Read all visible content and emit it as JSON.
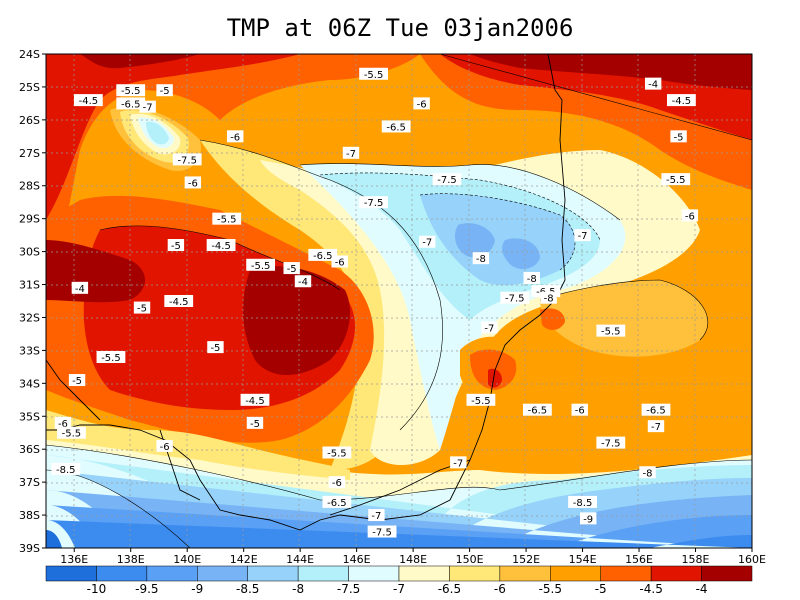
{
  "title": "TMP at 06Z Tue 03jan2006",
  "map": {
    "lat_labels": [
      "24S",
      "25S",
      "26S",
      "27S",
      "28S",
      "29S",
      "30S",
      "31S",
      "32S",
      "33S",
      "34S",
      "35S",
      "36S",
      "37S",
      "38S",
      "39S"
    ],
    "lon_labels": [
      "136E",
      "138E",
      "140E",
      "142E",
      "144E",
      "146E",
      "148E",
      "150E",
      "152E",
      "154E",
      "156E",
      "158E",
      "160E"
    ],
    "lon_range": [
      135,
      160
    ],
    "lat_range": [
      -39,
      -24
    ],
    "grid": "dotted"
  },
  "contour_labels": [
    {
      "text": "-5.5",
      "lon": 146.6,
      "lat": -24.6
    },
    {
      "text": "-4",
      "lon": 156.5,
      "lat": -24.9
    },
    {
      "text": "-5",
      "lon": 139.2,
      "lat": -25.1
    },
    {
      "text": "-5.5",
      "lon": 138.0,
      "lat": -25.1
    },
    {
      "text": "-4.5",
      "lon": 136.5,
      "lat": -25.4
    },
    {
      "text": "-6.5",
      "lon": 138.0,
      "lat": -25.5
    },
    {
      "text": "-7",
      "lon": 138.6,
      "lat": -25.6
    },
    {
      "text": "-4.5",
      "lon": 157.5,
      "lat": -25.4
    },
    {
      "text": "-6",
      "lon": 148.3,
      "lat": -25.5
    },
    {
      "text": "-6.5",
      "lon": 147.4,
      "lat": -26.2
    },
    {
      "text": "-6",
      "lon": 141.7,
      "lat": -26.5
    },
    {
      "text": "-5",
      "lon": 157.4,
      "lat": -26.5
    },
    {
      "text": "-7.5",
      "lon": 140.0,
      "lat": -27.2
    },
    {
      "text": "-7",
      "lon": 145.8,
      "lat": -27.0
    },
    {
      "text": "-6",
      "lon": 140.2,
      "lat": -27.9
    },
    {
      "text": "-7.5",
      "lon": 149.2,
      "lat": -27.8
    },
    {
      "text": "-5.5",
      "lon": 157.3,
      "lat": -27.8
    },
    {
      "text": "-7.5",
      "lon": 146.6,
      "lat": -28.5
    },
    {
      "text": "-6",
      "lon": 157.8,
      "lat": -28.9
    },
    {
      "text": "-5.5",
      "lon": 141.4,
      "lat": -29.0
    },
    {
      "text": "-7",
      "lon": 148.5,
      "lat": -29.7
    },
    {
      "text": "-7",
      "lon": 154.0,
      "lat": -29.5
    },
    {
      "text": "-5",
      "lon": 139.6,
      "lat": -29.8
    },
    {
      "text": "-4.5",
      "lon": 141.2,
      "lat": -29.8
    },
    {
      "text": "-6.5",
      "lon": 144.8,
      "lat": -30.1
    },
    {
      "text": "-6",
      "lon": 145.4,
      "lat": -30.3
    },
    {
      "text": "-5.5",
      "lon": 142.6,
      "lat": -30.4
    },
    {
      "text": "-5",
      "lon": 143.7,
      "lat": -30.5
    },
    {
      "text": "-8",
      "lon": 150.4,
      "lat": -30.2
    },
    {
      "text": "-8",
      "lon": 152.2,
      "lat": -30.8
    },
    {
      "text": "-4",
      "lon": 144.1,
      "lat": -30.9
    },
    {
      "text": "-4",
      "lon": 136.2,
      "lat": -31.1
    },
    {
      "text": "-6.5",
      "lon": 152.7,
      "lat": -31.2
    },
    {
      "text": "-8",
      "lon": 152.8,
      "lat": -31.4
    },
    {
      "text": "-7.5",
      "lon": 151.6,
      "lat": -31.4
    },
    {
      "text": "-4.5",
      "lon": 139.7,
      "lat": -31.5
    },
    {
      "text": "-5",
      "lon": 138.4,
      "lat": -31.7
    },
    {
      "text": "-7",
      "lon": 150.7,
      "lat": -32.3
    },
    {
      "text": "-5.5",
      "lon": 155.0,
      "lat": -32.4
    },
    {
      "text": "-5",
      "lon": 141.0,
      "lat": -32.9
    },
    {
      "text": "-5.5",
      "lon": 137.3,
      "lat": -33.2
    },
    {
      "text": "-5",
      "lon": 136.1,
      "lat": -33.9
    },
    {
      "text": "-5.5",
      "lon": 150.4,
      "lat": -34.5
    },
    {
      "text": "-4.5",
      "lon": 142.4,
      "lat": -34.5
    },
    {
      "text": "-6.5",
      "lon": 152.4,
      "lat": -34.8
    },
    {
      "text": "-6",
      "lon": 153.9,
      "lat": -34.8
    },
    {
      "text": "-6.5",
      "lon": 156.6,
      "lat": -34.8
    },
    {
      "text": "-5",
      "lon": 142.4,
      "lat": -35.2
    },
    {
      "text": "-7",
      "lon": 156.6,
      "lat": -35.3
    },
    {
      "text": "-6",
      "lon": 135.6,
      "lat": -35.2
    },
    {
      "text": "-5.5",
      "lon": 135.9,
      "lat": -35.5
    },
    {
      "text": "-6",
      "lon": 139.2,
      "lat": -35.9
    },
    {
      "text": "-7.5",
      "lon": 155.0,
      "lat": -35.8
    },
    {
      "text": "-5.5",
      "lon": 145.3,
      "lat": -36.1
    },
    {
      "text": "-7",
      "lon": 149.6,
      "lat": -36.4
    },
    {
      "text": "-8.5",
      "lon": 135.7,
      "lat": -36.6
    },
    {
      "text": "-8",
      "lon": 156.3,
      "lat": -36.7
    },
    {
      "text": "-6",
      "lon": 145.3,
      "lat": -37.0
    },
    {
      "text": "-6.5",
      "lon": 145.3,
      "lat": -37.6
    },
    {
      "text": "-8.5",
      "lon": 154.0,
      "lat": -37.6
    },
    {
      "text": "-7",
      "lon": 146.7,
      "lat": -38.0
    },
    {
      "text": "-9",
      "lon": 154.2,
      "lat": -38.1
    },
    {
      "text": "-7.5",
      "lon": 146.9,
      "lat": -38.5
    }
  ],
  "colorbar": {
    "labels": [
      "-10",
      "-9.5",
      "-9",
      "-8.5",
      "-8",
      "-7.5",
      "-7",
      "-6.5",
      "-6",
      "-5.5",
      "-5",
      "-4.5",
      "-4"
    ],
    "colors": [
      "#1e6edc",
      "#3c8cf0",
      "#5aa0f5",
      "#78b4f5",
      "#96d2fa",
      "#b4f0fa",
      "#e1fcff",
      "#fffac8",
      "#ffe878",
      "#ffc03c",
      "#ffa000",
      "#ff6000",
      "#e11400",
      "#a50000"
    ]
  }
}
